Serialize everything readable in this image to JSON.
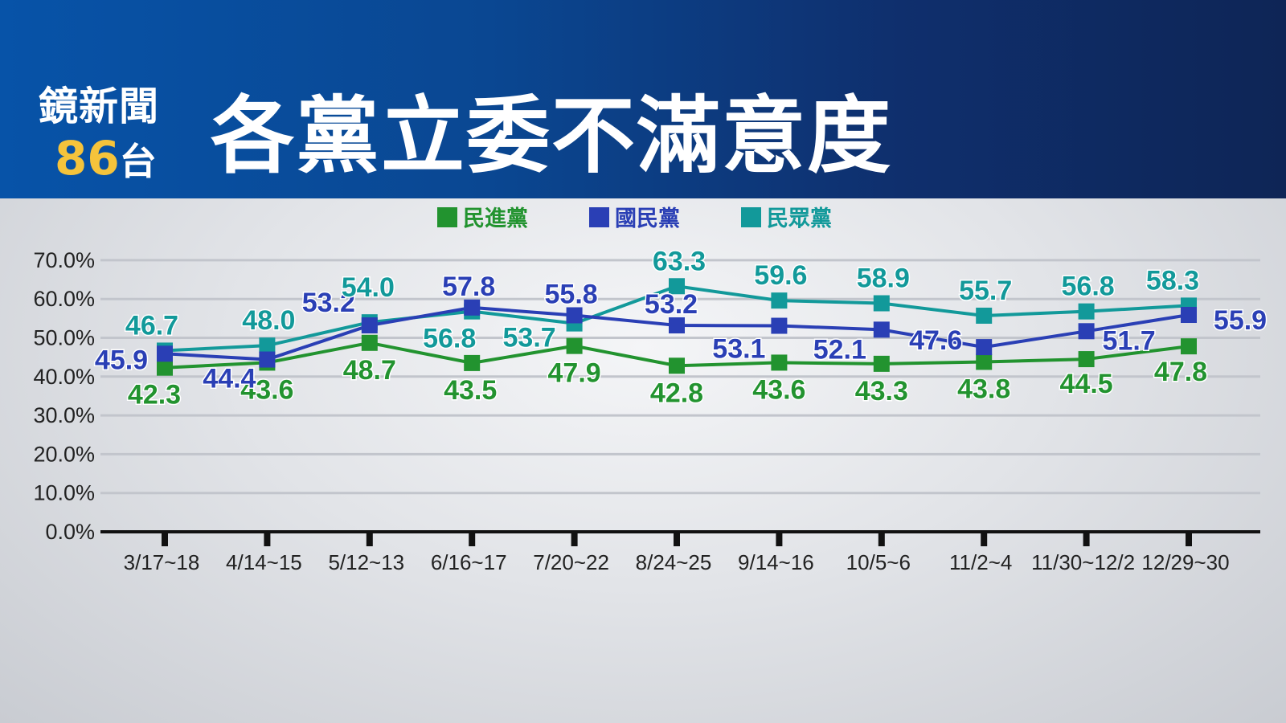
{
  "header": {
    "logo_line1": "鏡新聞",
    "logo_number": "86",
    "logo_suffix": "台",
    "title": "各黨立委不滿意度"
  },
  "colors": {
    "header_blue": "#0a4792",
    "header_dark": "#0e2556",
    "logo_yellow": "#f5c33b",
    "dpp_green": "#22932f",
    "kmt_blue": "#2a3fb5",
    "tpp_teal": "#12999a"
  },
  "chart_data": {
    "type": "line",
    "title": "各黨立委不滿意度",
    "categories": [
      "3/17~18",
      "4/14~15",
      "5/12~13",
      "6/16~17",
      "7/20~22",
      "8/24~25",
      "9/14~16",
      "10/5~6",
      "11/2~4",
      "11/30~12/2",
      "12/29~30"
    ],
    "y_ticks": [
      "70.0%",
      "60.0%",
      "50.0%",
      "40.0%",
      "30.0%",
      "20.0%",
      "10.0%",
      "0.0%"
    ],
    "ylim": [
      0,
      70
    ],
    "grid": true,
    "legend_position": "top-center",
    "series": [
      {
        "name": "民進黨",
        "color": "#22932f",
        "values": [
          42.3,
          43.6,
          48.7,
          43.5,
          47.9,
          42.8,
          43.6,
          43.3,
          43.8,
          44.5,
          47.8
        ],
        "labels": [
          "42.3",
          "43.6",
          "48.7",
          "43.5",
          "47.9",
          "42.8",
          "43.6",
          "43.3",
          "43.8",
          "44.5",
          "47.8"
        ]
      },
      {
        "name": "國民黨",
        "color": "#2a3fb5",
        "values": [
          45.9,
          44.4,
          53.2,
          57.8,
          55.8,
          53.2,
          53.1,
          52.1,
          47.6,
          51.7,
          55.9
        ],
        "labels": [
          "45.9",
          "44.4",
          "53.2",
          "57.8",
          "55.8",
          "53.2",
          "53.1",
          "52.1",
          "47.6",
          "51.7",
          "55.9"
        ]
      },
      {
        "name": "民眾黨",
        "color": "#12999a",
        "values": [
          46.7,
          48.0,
          54.0,
          56.8,
          53.7,
          63.3,
          59.6,
          58.9,
          55.7,
          56.8,
          58.3
        ],
        "labels": [
          "46.7",
          "48.0",
          "54.0",
          "56.8",
          "53.7",
          "63.3",
          "59.6",
          "58.9",
          "55.7",
          "56.8",
          "58.3"
        ]
      }
    ]
  }
}
